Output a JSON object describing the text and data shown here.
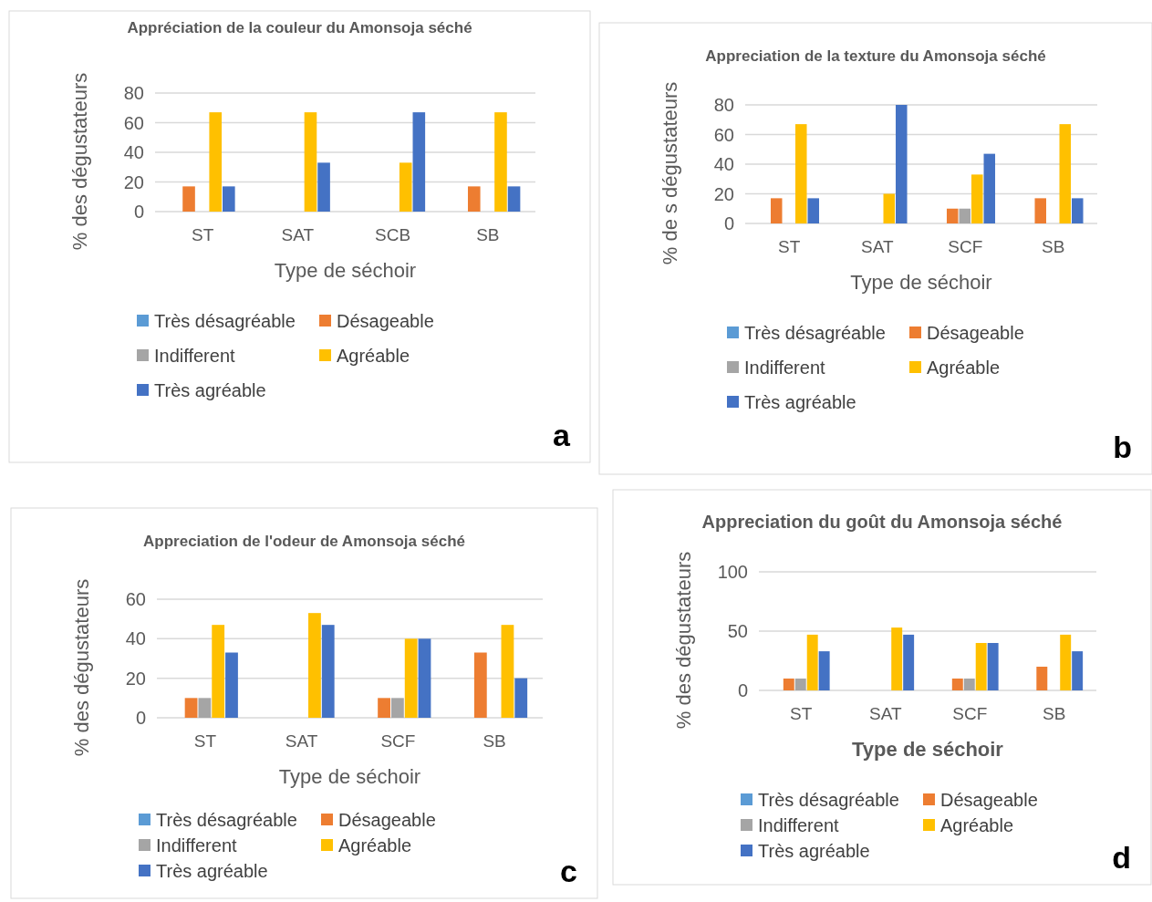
{
  "chart_data": [
    {
      "type": "bar",
      "title": "Appréciation de la couleur  du Amonsoja séché",
      "xlabel": "Type de séchoir",
      "ylabel": "% des dégustateurs",
      "categories": [
        "ST",
        "SAT",
        "SCB",
        "SB"
      ],
      "ylim": [
        0,
        80
      ],
      "yticks": [
        0,
        20,
        40,
        60,
        80
      ],
      "grid": "y",
      "legend": "bottom",
      "annotations": [
        "a"
      ],
      "series": [
        {
          "name": "Très désagréable",
          "color": "#5b9bd5",
          "values": [
            0,
            0,
            0,
            0
          ]
        },
        {
          "name": "Désageable",
          "color": "#ed7d31",
          "values": [
            17,
            0,
            0,
            17
          ]
        },
        {
          "name": "Indifferent",
          "color": "#a5a5a5",
          "values": [
            0,
            0,
            0,
            0
          ]
        },
        {
          "name": "Agréable",
          "color": "#ffc000",
          "values": [
            67,
            67,
            33,
            67
          ]
        },
        {
          "name": "Très agréable",
          "color": "#4472c4",
          "values": [
            17,
            33,
            67,
            17
          ]
        }
      ]
    },
    {
      "type": "bar",
      "title": "Appreciation  de la texture du Amonsoja séché",
      "xlabel": "Type de séchoir",
      "ylabel": "% de s dégustateurs",
      "categories": [
        "ST",
        "SAT",
        "SCF",
        "SB"
      ],
      "ylim": [
        0,
        80
      ],
      "yticks": [
        0,
        20,
        40,
        60,
        80
      ],
      "grid": "y",
      "legend": "bottom",
      "annotations": [
        "b"
      ],
      "series": [
        {
          "name": "Très désagréable",
          "color": "#5b9bd5",
          "values": [
            0,
            0,
            0,
            0
          ]
        },
        {
          "name": "Désageable",
          "color": "#ed7d31",
          "values": [
            17,
            0,
            10,
            17
          ]
        },
        {
          "name": "Indifferent",
          "color": "#a5a5a5",
          "values": [
            0,
            0,
            10,
            0
          ]
        },
        {
          "name": "Agréable",
          "color": "#ffc000",
          "values": [
            67,
            20,
            33,
            67
          ]
        },
        {
          "name": "Très agréable",
          "color": "#4472c4",
          "values": [
            17,
            80,
            47,
            17
          ]
        }
      ]
    },
    {
      "type": "bar",
      "title": "Appreciation de l'odeur de Amonsoja séché",
      "xlabel": "Type de séchoir",
      "ylabel": "% des dégustateurs",
      "categories": [
        "ST",
        "SAT",
        "SCF",
        "SB"
      ],
      "ylim": [
        0,
        60
      ],
      "yticks": [
        0,
        20,
        40,
        60
      ],
      "grid": "y",
      "legend": "bottom",
      "annotations": [
        "c"
      ],
      "series": [
        {
          "name": "Très désagréable",
          "color": "#5b9bd5",
          "values": [
            0,
            0,
            0,
            0
          ]
        },
        {
          "name": "Désageable",
          "color": "#ed7d31",
          "values": [
            10,
            0,
            10,
            33
          ]
        },
        {
          "name": "Indifferent",
          "color": "#a5a5a5",
          "values": [
            10,
            0,
            10,
            0
          ]
        },
        {
          "name": "Agréable",
          "color": "#ffc000",
          "values": [
            47,
            53,
            40,
            47
          ]
        },
        {
          "name": "Très agréable",
          "color": "#4472c4",
          "values": [
            33,
            47,
            40,
            20
          ]
        }
      ]
    },
    {
      "type": "bar",
      "title": "Appreciation du goût du Amonsoja séché",
      "xlabel": "Type de séchoir",
      "ylabel": "% des dégustateurs",
      "categories": [
        "ST",
        "SAT",
        "SCF",
        "SB"
      ],
      "ylim": [
        0,
        100
      ],
      "yticks": [
        0,
        50,
        100
      ],
      "grid": "y",
      "legend": "bottom",
      "annotations": [
        "d"
      ],
      "series": [
        {
          "name": "Très désagréable",
          "color": "#5b9bd5",
          "values": [
            0,
            0,
            0,
            0
          ]
        },
        {
          "name": "Désageable",
          "color": "#ed7d31",
          "values": [
            10,
            0,
            10,
            20
          ]
        },
        {
          "name": "Indifferent",
          "color": "#a5a5a5",
          "values": [
            10,
            0,
            10,
            0
          ]
        },
        {
          "name": "Agréable",
          "color": "#ffc000",
          "values": [
            47,
            53,
            40,
            47
          ]
        },
        {
          "name": "Très agréable",
          "color": "#4472c4",
          "values": [
            33,
            47,
            40,
            33
          ]
        }
      ]
    }
  ]
}
